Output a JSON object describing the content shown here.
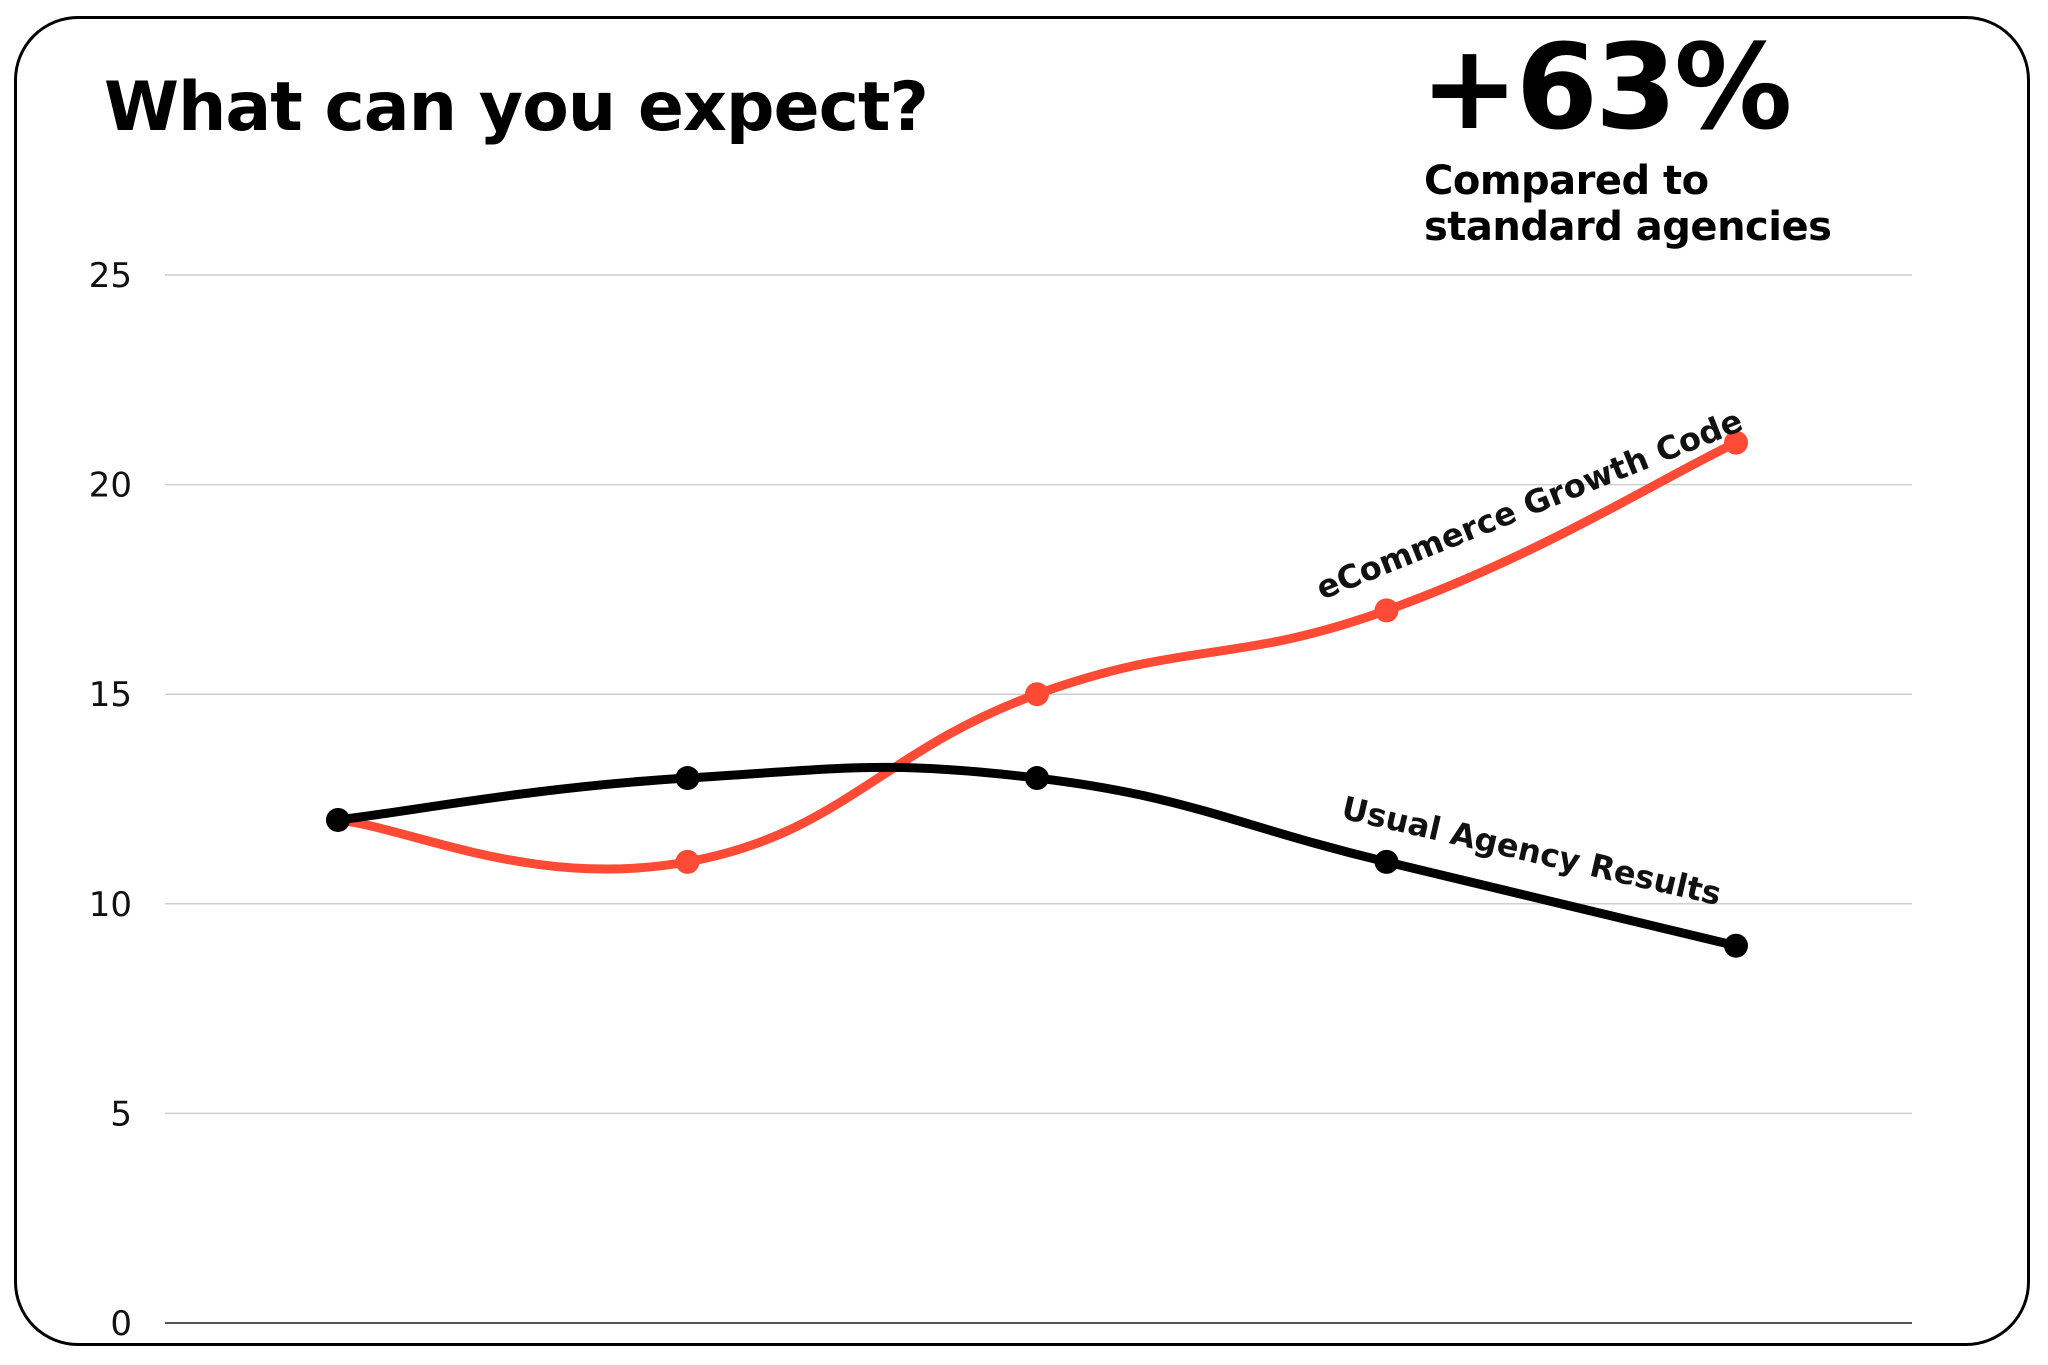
{
  "header": {
    "title": "What can you expect?",
    "stat_value": "+63%",
    "stat_caption": "Compared to standard agencies"
  },
  "chart_data": {
    "type": "line",
    "title": "",
    "xlabel": "",
    "ylabel": "",
    "x": [
      1,
      2,
      3,
      4,
      5
    ],
    "ylim": [
      0,
      25
    ],
    "yticks": [
      "0",
      "5",
      "10",
      "15",
      "20",
      "25"
    ],
    "grid": true,
    "series": [
      {
        "name": "eCommerce Growth Code",
        "color": "#ff4a36",
        "values": [
          12,
          11,
          15,
          17,
          21
        ]
      },
      {
        "name": "Usual Agency Results",
        "color": "#000000",
        "values": [
          12,
          13,
          13,
          11,
          9
        ]
      }
    ]
  }
}
